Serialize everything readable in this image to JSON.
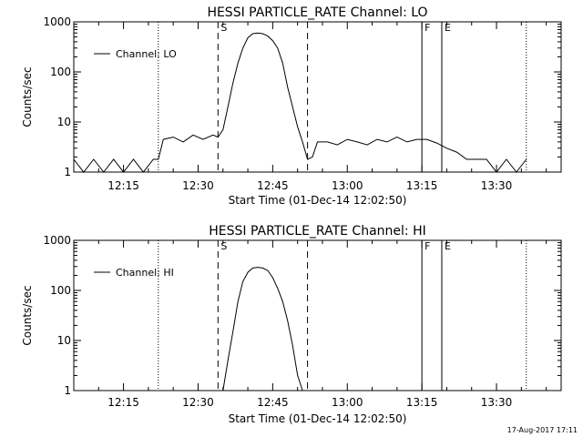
{
  "footer": {
    "timestamp": "17-Aug-2017 17:11"
  },
  "chart_data": [
    {
      "type": "line",
      "title": "HESSI PARTICLE_RATE Channel: LO",
      "xlabel": "Start Time (01-Dec-14 12:02:50)",
      "ylabel": "Counts/sec",
      "yscale": "log",
      "ylim": [
        1,
        1000
      ],
      "xlim": [
        "12:05",
        "13:43"
      ],
      "xticks": [
        "12:15",
        "12:30",
        "12:45",
        "13:00",
        "13:15",
        "13:30"
      ],
      "yticks": [
        "1",
        "10",
        "100",
        "1000"
      ],
      "legend": {
        "placement": "top-left",
        "entries": [
          "Channel: LO"
        ]
      },
      "series": [
        {
          "name": "Channel: LO",
          "x": [
            "12:05",
            "12:07",
            "12:09",
            "12:11",
            "12:13",
            "12:15",
            "12:17",
            "12:19",
            "12:21",
            "12:22",
            "12:23",
            "12:25",
            "12:27",
            "12:29",
            "12:31",
            "12:33",
            "12:34",
            "12:35",
            "12:36",
            "12:37",
            "12:38",
            "12:39",
            "12:40",
            "12:41",
            "12:42",
            "12:43",
            "12:44",
            "12:45",
            "12:46",
            "12:47",
            "12:48",
            "12:49",
            "12:50",
            "12:51",
            "12:52",
            "12:53",
            "12:54",
            "12:56",
            "12:58",
            "13:00",
            "13:02",
            "13:04",
            "13:06",
            "13:08",
            "13:10",
            "13:12",
            "13:14",
            "13:16",
            "13:18",
            "13:20",
            "13:22",
            "13:24",
            "13:26",
            "13:28",
            "13:30",
            "13:32",
            "13:34",
            "13:36"
          ],
          "y": [
            1.8,
            1,
            1.8,
            1,
            1.8,
            1,
            1.8,
            1,
            1.8,
            1.8,
            4.5,
            5,
            4,
            5.5,
            4.5,
            5.5,
            5,
            7,
            20,
            60,
            150,
            300,
            480,
            580,
            600,
            580,
            520,
            420,
            300,
            150,
            50,
            20,
            8,
            4,
            1.8,
            2,
            4,
            4,
            3.5,
            4.5,
            4,
            3.5,
            4.5,
            4,
            5,
            4,
            4.5,
            4.5,
            3.8,
            3,
            2.5,
            1.8,
            1.8,
            1.8,
            1,
            1.8,
            1,
            1.8
          ]
        }
      ],
      "markers": [
        {
          "kind": "dotted",
          "x": "12:22",
          "label": ""
        },
        {
          "kind": "dashed",
          "x": "12:34",
          "label": "S"
        },
        {
          "kind": "dashed",
          "x": "12:52",
          "label": ""
        },
        {
          "kind": "solid",
          "x": "13:15",
          "label": "F"
        },
        {
          "kind": "solid",
          "x": "13:19",
          "label": "E"
        },
        {
          "kind": "dotted",
          "x": "13:36",
          "label": ""
        }
      ]
    },
    {
      "type": "line",
      "title": "HESSI PARTICLE_RATE Channel: HI",
      "xlabel": "Start Time (01-Dec-14 12:02:50)",
      "ylabel": "Counts/sec",
      "yscale": "log",
      "ylim": [
        1,
        1000
      ],
      "xlim": [
        "12:05",
        "13:43"
      ],
      "xticks": [
        "12:15",
        "12:30",
        "12:45",
        "13:00",
        "13:15",
        "13:30"
      ],
      "yticks": [
        "1",
        "10",
        "100",
        "1000"
      ],
      "legend": {
        "placement": "top-left",
        "entries": [
          "Channel: HI"
        ]
      },
      "series": [
        {
          "name": "Channel: HI",
          "x": [
            "12:35",
            "12:36",
            "12:37",
            "12:38",
            "12:39",
            "12:40",
            "12:41",
            "12:42",
            "12:43",
            "12:44",
            "12:45",
            "12:46",
            "12:47",
            "12:48",
            "12:49",
            "12:50",
            "12:51"
          ],
          "y": [
            1,
            4,
            15,
            60,
            150,
            230,
            280,
            290,
            280,
            250,
            180,
            110,
            60,
            25,
            8,
            2,
            1
          ]
        }
      ],
      "markers": [
        {
          "kind": "dotted",
          "x": "12:22",
          "label": ""
        },
        {
          "kind": "dashed",
          "x": "12:34",
          "label": "S"
        },
        {
          "kind": "dashed",
          "x": "12:52",
          "label": ""
        },
        {
          "kind": "solid",
          "x": "13:15",
          "label": "F"
        },
        {
          "kind": "solid",
          "x": "13:19",
          "label": "E"
        },
        {
          "kind": "dotted",
          "x": "13:36",
          "label": ""
        }
      ]
    }
  ]
}
